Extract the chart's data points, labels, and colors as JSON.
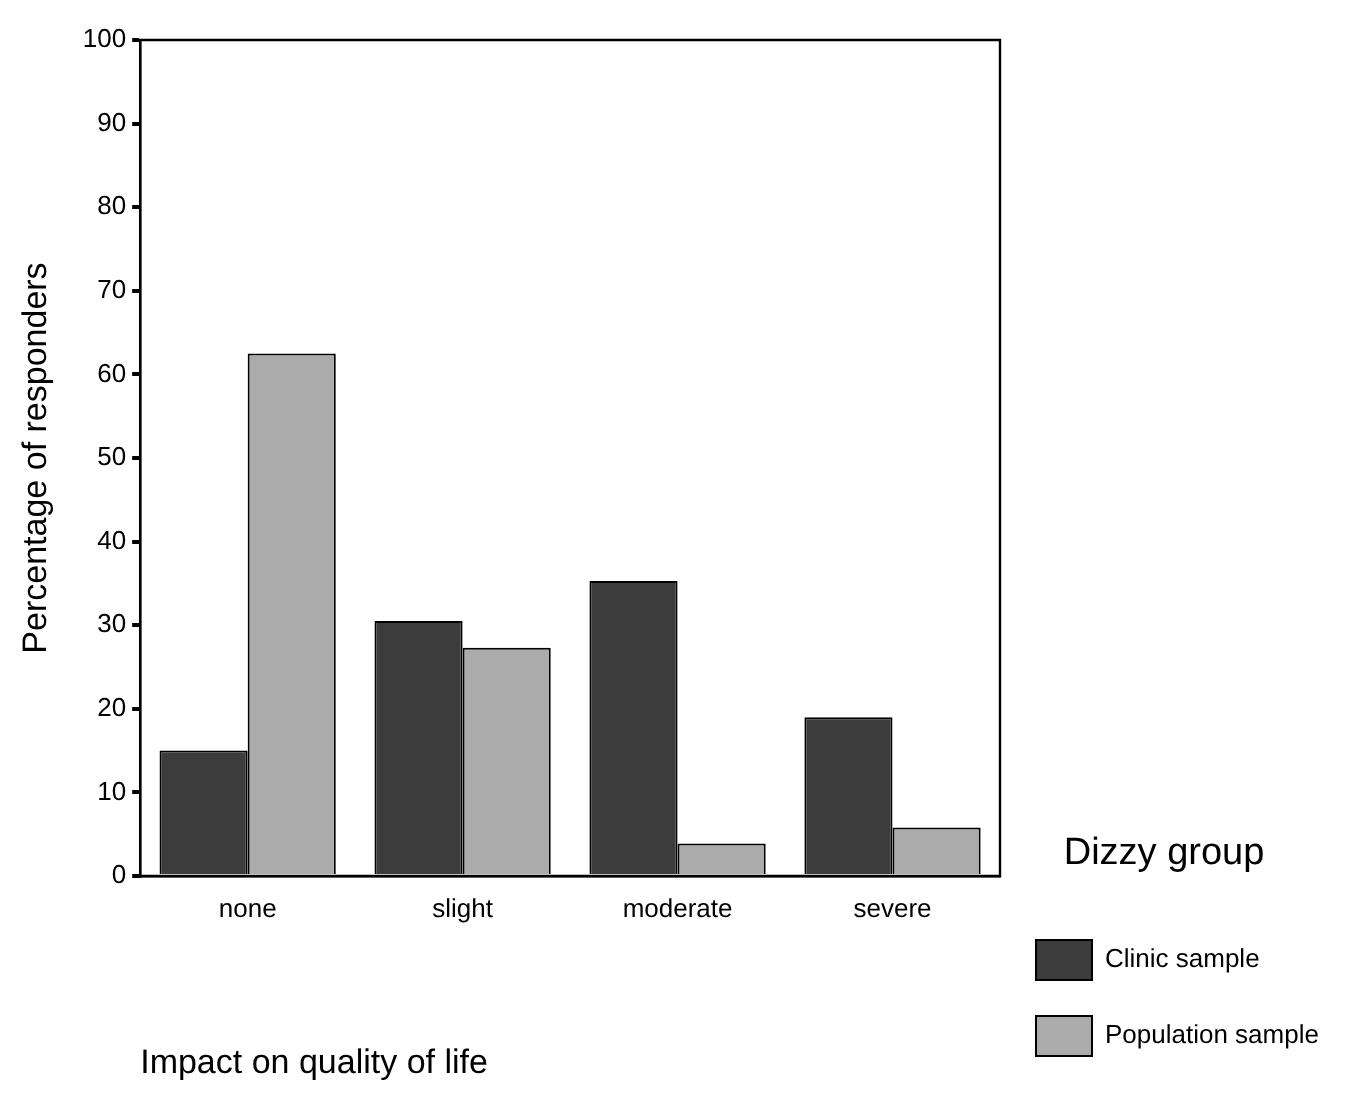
{
  "chart_data": {
    "type": "bar",
    "xlabel": "Impact on quality of life",
    "ylabel": "Percentage of responders",
    "legend_title": "Dizzy group",
    "categories": [
      "none",
      "slight",
      "moderate",
      "severe"
    ],
    "series": [
      {
        "name": "Clinic sample",
        "color": "#3c3c3c",
        "values": [
          15,
          30.5,
          35.3,
          19
        ]
      },
      {
        "name": "Population sample",
        "color": "#ababab",
        "values": [
          62.5,
          27.3,
          3.9,
          5.8
        ]
      }
    ],
    "ylim": [
      0,
      100
    ],
    "yticks": [
      0,
      10,
      20,
      30,
      40,
      50,
      60,
      70,
      80,
      90,
      100
    ],
    "grid": false,
    "legend": "bottom right"
  }
}
